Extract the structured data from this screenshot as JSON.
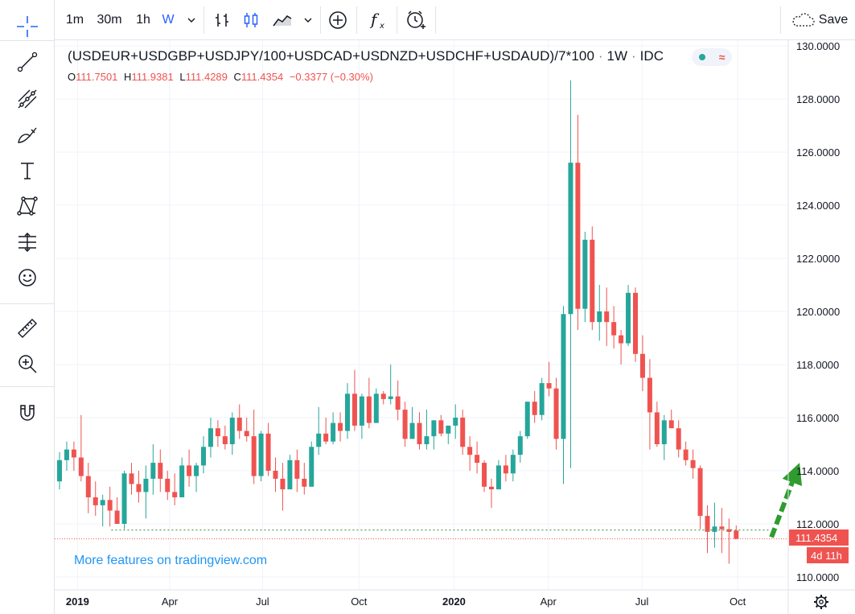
{
  "toolbar": {
    "intervals": [
      "1m",
      "30m",
      "1h",
      "W"
    ],
    "active_interval": "W",
    "save_label": "Save"
  },
  "legend": {
    "title": "(USDEUR+USDGBP+USDJPY/100+USDCAD+USDNZD+USDCHF+USDAUD)/7*100",
    "interval": "1W",
    "source": "IDC",
    "sep": "·",
    "o_label": "O",
    "o_value": "111.7501",
    "h_label": "H",
    "h_value": "111.9381",
    "l_label": "L",
    "l_value": "111.4289",
    "c_label": "C",
    "c_value": "111.4354",
    "change": "−0.3377 (−0.30%)"
  },
  "watermark": "More features on tradingview.com",
  "price_label": "111.4354",
  "countdown_label": "4d 11h",
  "colors": {
    "up": "#26a69a",
    "down": "#ef5350",
    "accent": "#2962ff",
    "arrow": "#2e9c2e",
    "watermark": "#2196f3"
  },
  "icons": {
    "left_toolbar": [
      "crosshair-icon",
      "trend-line-icon",
      "pitchfork-icon",
      "brush-icon",
      "text-icon",
      "pattern-icon",
      "forecast-icon",
      "emoji-icon",
      "ruler-icon",
      "zoom-in-icon",
      "magnet-icon"
    ],
    "top_toolbar": [
      "chevron-down-icon",
      "bars-style-icon",
      "candles-style-icon",
      "area-style-icon",
      "chevron-down-icon",
      "compare-icon",
      "indicators-icon",
      "alert-icon",
      "cloud-icon"
    ],
    "bottom_right": "gear-icon"
  },
  "chart_data": {
    "type": "candlestick",
    "timeframe": "1W",
    "y_axis": {
      "min": 109.6,
      "max": 130.2,
      "ticks": [
        "110.0000",
        "112.0000",
        "114.0000",
        "116.0000",
        "118.0000",
        "120.0000",
        "122.0000",
        "124.0000",
        "126.0000",
        "128.0000",
        "130.0000"
      ],
      "position": "right"
    },
    "x_axis": {
      "ticks": [
        {
          "label": "2019",
          "bar": 2.5,
          "bold": true
        },
        {
          "label": "Apr",
          "bar": 15.3
        },
        {
          "label": "Jul",
          "bar": 28.2
        },
        {
          "label": "Oct",
          "bar": 41.6
        },
        {
          "label": "2020",
          "bar": 54.8,
          "bold": true
        },
        {
          "label": "Apr",
          "bar": 67.9
        },
        {
          "label": "Jul",
          "bar": 80.9
        },
        {
          "label": "Oct",
          "bar": 94.2
        }
      ]
    },
    "candles": [
      [
        113.6,
        114.7,
        113.3,
        114.4
      ],
      [
        114.4,
        115.1,
        114.0,
        114.8
      ],
      [
        114.8,
        115.1,
        114.0,
        114.5
      ],
      [
        114.5,
        116.1,
        113.6,
        113.8
      ],
      [
        113.8,
        114.3,
        112.4,
        113.0
      ],
      [
        113.0,
        113.6,
        112.3,
        112.7
      ],
      [
        112.7,
        113.1,
        111.9,
        112.9
      ],
      [
        112.9,
        113.4,
        111.9,
        112.5
      ],
      [
        112.5,
        113.0,
        112.1,
        112.0
      ],
      [
        112.0,
        114.0,
        111.8,
        113.9
      ],
      [
        113.9,
        114.3,
        113.1,
        113.5
      ],
      [
        113.5,
        114.0,
        112.8,
        113.2
      ],
      [
        113.2,
        114.2,
        112.2,
        113.7
      ],
      [
        113.7,
        115.0,
        113.1,
        114.3
      ],
      [
        114.3,
        114.8,
        113.2,
        113.7
      ],
      [
        113.7,
        114.0,
        112.9,
        113.2
      ],
      [
        113.2,
        113.9,
        112.7,
        113.0
      ],
      [
        113.0,
        114.5,
        113.2,
        114.2
      ],
      [
        114.2,
        114.8,
        113.4,
        113.8
      ],
      [
        113.8,
        114.3,
        113.2,
        114.2
      ],
      [
        114.2,
        115.3,
        113.9,
        114.9
      ],
      [
        114.9,
        116.0,
        114.5,
        115.6
      ],
      [
        115.6,
        115.9,
        114.9,
        115.3
      ],
      [
        115.3,
        115.7,
        114.8,
        115.0
      ],
      [
        115.0,
        116.2,
        114.6,
        116.0
      ],
      [
        116.0,
        116.5,
        115.2,
        115.5
      ],
      [
        115.5,
        116.0,
        115.1,
        115.3
      ],
      [
        115.3,
        116.3,
        113.5,
        113.8
      ],
      [
        113.8,
        115.5,
        113.6,
        115.4
      ],
      [
        115.4,
        115.8,
        113.8,
        114.0
      ],
      [
        114.0,
        114.5,
        113.2,
        113.7
      ],
      [
        113.7,
        114.3,
        112.5,
        113.3
      ],
      [
        113.3,
        114.6,
        113.4,
        114.4
      ],
      [
        114.4,
        114.8,
        113.2,
        113.7
      ],
      [
        113.7,
        114.3,
        113.1,
        113.4
      ],
      [
        113.4,
        115.1,
        113.6,
        114.9
      ],
      [
        114.9,
        116.4,
        114.6,
        115.4
      ],
      [
        115.4,
        116.0,
        115.0,
        115.1
      ],
      [
        115.1,
        116.2,
        115.0,
        115.8
      ],
      [
        115.8,
        116.2,
        115.1,
        115.5
      ],
      [
        115.5,
        117.3,
        115.2,
        116.9
      ],
      [
        116.9,
        117.8,
        115.5,
        115.7
      ],
      [
        115.7,
        116.9,
        115.2,
        116.8
      ],
      [
        116.8,
        117.5,
        115.6,
        115.8
      ],
      [
        115.8,
        117.1,
        116.0,
        116.9
      ],
      [
        116.9,
        117.0,
        116.5,
        116.7
      ],
      [
        116.7,
        118.0,
        116.5,
        116.8
      ],
      [
        116.8,
        117.4,
        115.9,
        116.3
      ],
      [
        116.3,
        116.6,
        114.9,
        115.2
      ],
      [
        115.2,
        116.4,
        115.2,
        115.8
      ],
      [
        115.8,
        116.2,
        114.8,
        115.0
      ],
      [
        115.0,
        116.3,
        114.8,
        115.3
      ],
      [
        115.3,
        115.9,
        114.8,
        115.9
      ],
      [
        115.9,
        116.1,
        115.3,
        115.4
      ],
      [
        115.4,
        115.6,
        115.0,
        115.7
      ],
      [
        115.7,
        116.5,
        115.2,
        116.0
      ],
      [
        116.0,
        116.3,
        114.6,
        114.9
      ],
      [
        114.9,
        115.3,
        114.0,
        114.6
      ],
      [
        114.6,
        115.1,
        113.9,
        114.3
      ],
      [
        114.3,
        114.4,
        113.2,
        113.4
      ],
      [
        113.4,
        113.7,
        112.6,
        113.3
      ],
      [
        113.3,
        114.4,
        113.4,
        114.2
      ],
      [
        114.2,
        114.6,
        113.6,
        113.9
      ],
      [
        113.9,
        114.8,
        113.6,
        114.6
      ],
      [
        114.6,
        115.5,
        114.3,
        115.3
      ],
      [
        115.3,
        116.6,
        115.2,
        116.6
      ],
      [
        116.6,
        117.0,
        115.8,
        116.1
      ],
      [
        116.1,
        117.5,
        115.9,
        117.3
      ],
      [
        117.3,
        118.1,
        116.8,
        117.1
      ],
      [
        117.1,
        117.5,
        114.8,
        115.2
      ],
      [
        115.2,
        120.2,
        113.5,
        119.9
      ],
      [
        119.9,
        128.7,
        114.1,
        125.6
      ],
      [
        125.6,
        127.4,
        119.3,
        120.1
      ],
      [
        120.1,
        123.0,
        119.6,
        122.7
      ],
      [
        122.7,
        123.2,
        119.3,
        119.6
      ],
      [
        119.6,
        121.0,
        118.9,
        120.0
      ],
      [
        120.0,
        120.9,
        118.7,
        119.6
      ],
      [
        119.6,
        120.2,
        118.6,
        119.1
      ],
      [
        119.1,
        119.3,
        118.0,
        118.8
      ],
      [
        118.8,
        121.0,
        118.7,
        120.7
      ],
      [
        120.7,
        120.9,
        118.1,
        118.4
      ],
      [
        118.4,
        119.1,
        117.0,
        117.5
      ],
      [
        117.5,
        118.2,
        114.8,
        116.2
      ],
      [
        116.2,
        116.6,
        114.9,
        115.0
      ],
      [
        115.0,
        116.1,
        114.4,
        115.9
      ],
      [
        115.9,
        116.3,
        115.7,
        115.6
      ],
      [
        115.6,
        115.9,
        114.5,
        114.8
      ],
      [
        114.8,
        115.1,
        114.2,
        114.4
      ],
      [
        114.4,
        114.8,
        113.7,
        114.1
      ],
      [
        114.1,
        114.2,
        111.8,
        112.3
      ],
      [
        112.3,
        112.7,
        110.9,
        111.7
      ],
      [
        111.7,
        112.8,
        111.1,
        111.9
      ],
      [
        111.9,
        112.6,
        110.9,
        111.8
      ],
      [
        111.8,
        112.2,
        110.5,
        111.7
      ],
      [
        111.7501,
        111.9381,
        111.4289,
        111.4354
      ]
    ],
    "last_price": 111.4354,
    "support_level": 111.77,
    "arrow": {
      "from_bar": 98.9,
      "from_price": 111.5,
      "to_bar": 102.8,
      "to_price": 114.3
    }
  }
}
